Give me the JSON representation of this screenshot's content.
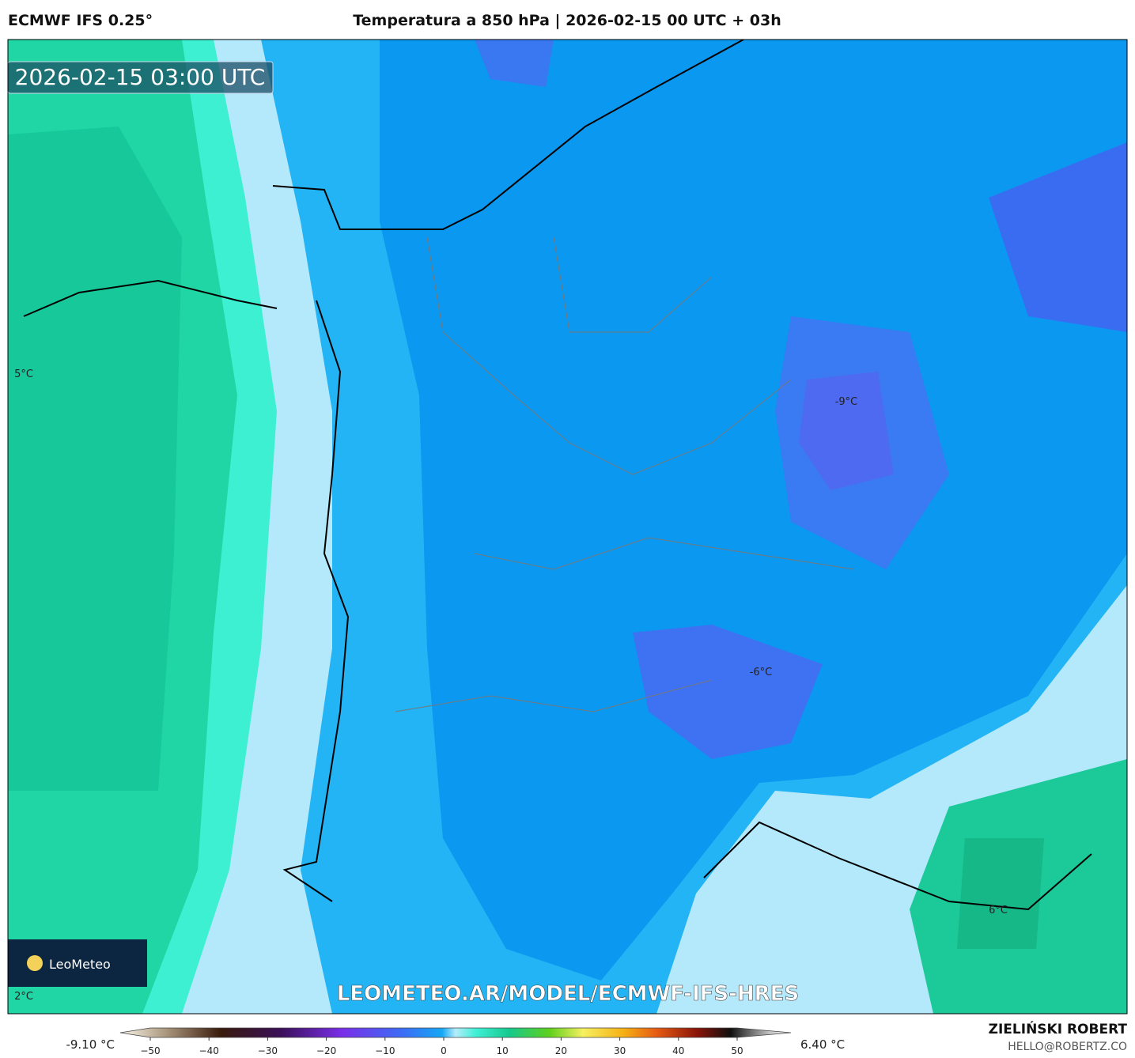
{
  "header": {
    "model": "ECMWF IFS 0.25°",
    "title": "Temperatura a 850 hPa | 2026-02-15 00 UTC + 03h"
  },
  "map": {
    "timestamp": "2026-02-15 03:00 UTC",
    "watermark": "LEOMETEO.AR/MODEL/ECMWF-IFS-HRES",
    "logo": "LeoMeteo",
    "contour_labels": [
      "5°C",
      "-9°C",
      "-6°C",
      "6°C",
      "2°C"
    ]
  },
  "colorbar": {
    "min_label": "-9.10 °C",
    "max_label": "6.40 °C",
    "ticks": [
      {
        "value": -50,
        "label": "−50"
      },
      {
        "value": -40,
        "label": "−40"
      },
      {
        "value": -30,
        "label": "−30"
      },
      {
        "value": -20,
        "label": "−20"
      },
      {
        "value": -10,
        "label": "−10"
      },
      0,
      10,
      20,
      30,
      40,
      50
    ]
  },
  "credit": {
    "author": "ZIELIŃSKI ROBERT",
    "email": "HELLO@ROBERTZ.CO"
  }
}
